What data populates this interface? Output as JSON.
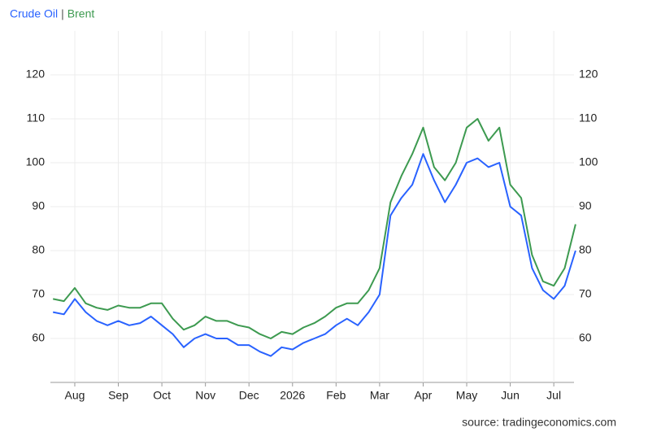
{
  "chart_data": {
    "type": "line",
    "categories": [
      null,
      null,
      "Aug",
      null,
      null,
      null,
      "Sep",
      null,
      null,
      null,
      "Oct",
      null,
      null,
      null,
      "Nov",
      null,
      null,
      null,
      "Dec",
      null,
      null,
      null,
      "2026",
      null,
      null,
      null,
      "Feb",
      null,
      null,
      null,
      "Mar",
      null,
      null,
      null,
      "Apr",
      null,
      null,
      null,
      "May",
      null,
      null,
      null,
      "Jun",
      null,
      null,
      null,
      "Jul",
      null,
      null
    ],
    "series": [
      {
        "name": "Crude Oil",
        "color": "#2962ff",
        "values": [
          66,
          65.5,
          69,
          66,
          64,
          63,
          64,
          63,
          63.5,
          65,
          63,
          61,
          58,
          60,
          61,
          60,
          60,
          58.5,
          58.5,
          57,
          56,
          58,
          57.5,
          59,
          60,
          61,
          63,
          64.5,
          63,
          66,
          70,
          88,
          92,
          95,
          102,
          96,
          91,
          95,
          100,
          101,
          99,
          100,
          90,
          88,
          76,
          71,
          69,
          72,
          80
        ]
      },
      {
        "name": "Brent",
        "color": "#3d9a50",
        "values": [
          69,
          68.5,
          71.5,
          68,
          67,
          66.5,
          67.5,
          67,
          67,
          68,
          68,
          64.5,
          62,
          63,
          65,
          64,
          64,
          63,
          62.5,
          61,
          60,
          61.5,
          61,
          62.5,
          63.5,
          65,
          67,
          68,
          68,
          71,
          76,
          91,
          97,
          102,
          108,
          99,
          96,
          100,
          108,
          110,
          105,
          108,
          95,
          92,
          79,
          73,
          72,
          76,
          86
        ]
      }
    ],
    "legend_separator": "|",
    "ylim": [
      50,
      130
    ],
    "yticks": [
      60,
      70,
      80,
      90,
      100,
      110,
      120
    ],
    "grid": true,
    "source": "source: tradingeconomics.com"
  }
}
